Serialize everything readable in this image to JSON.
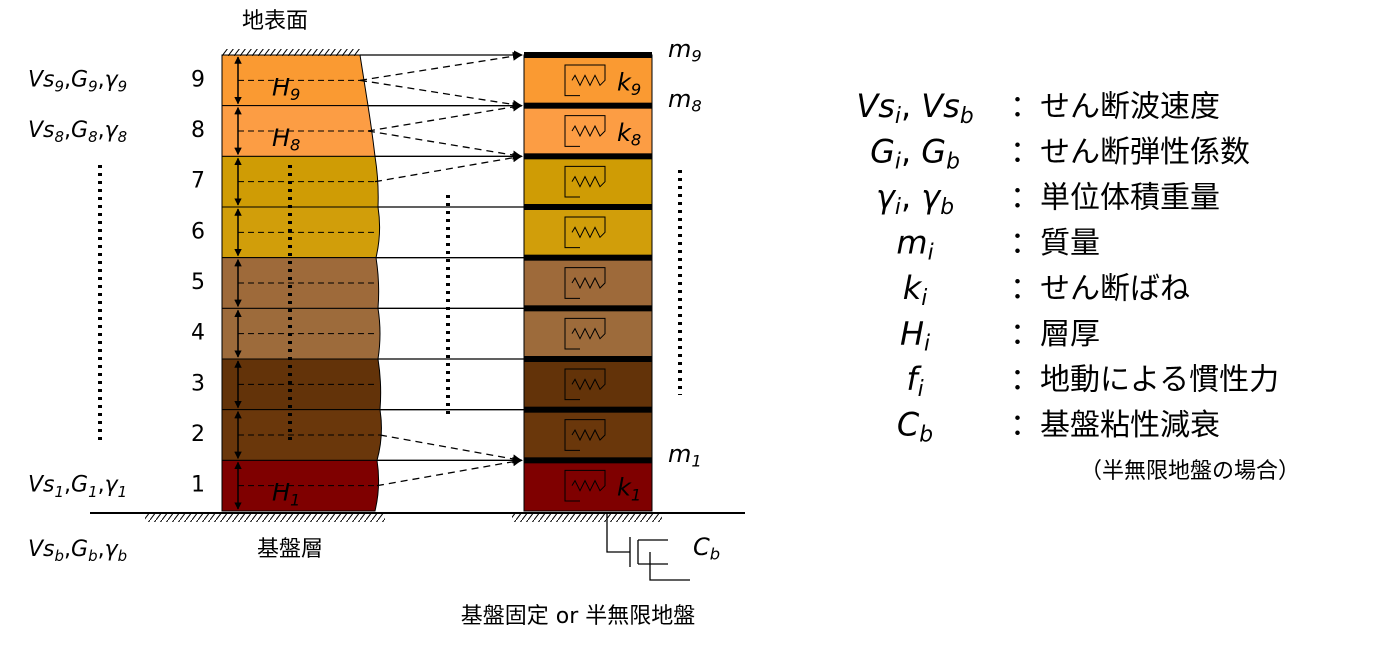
{
  "ground_surface_label": "地表面",
  "layers": [
    {
      "number": "9",
      "color": "#fa9a32"
    },
    {
      "number": "8",
      "color": "#fc9d44"
    },
    {
      "number": "7",
      "color": "#cf9c05"
    },
    {
      "number": "6",
      "color": "#d19e0a"
    },
    {
      "number": "5",
      "color": "#9e6a3a"
    },
    {
      "number": "4",
      "color": "#9d6b3b"
    },
    {
      "number": "3",
      "color": "#633309"
    },
    {
      "number": "2",
      "color": "#6a370b"
    },
    {
      "number": "1",
      "color": "#7f0000"
    }
  ],
  "separator": ",",
  "property_labels": [
    [
      {
        "base": "Vs",
        "sub": "9"
      },
      {
        "base": "G",
        "sub": "9"
      },
      {
        "base": "γ",
        "sub": "9"
      }
    ],
    [
      {
        "base": "Vs",
        "sub": "8"
      },
      {
        "base": "G",
        "sub": "8"
      },
      {
        "base": "γ",
        "sub": "8"
      }
    ],
    [
      {
        "base": "Vs",
        "sub": "1"
      },
      {
        "base": "G",
        "sub": "1"
      },
      {
        "base": "γ",
        "sub": "1"
      }
    ]
  ],
  "bedrock_properties": [
    {
      "base": "Vs",
      "sub": "b"
    },
    {
      "base": "G",
      "sub": "b"
    },
    {
      "base": "γ",
      "sub": "b"
    }
  ],
  "thickness_labels": [
    {
      "base": "H",
      "sub": "9"
    },
    {
      "base": "H",
      "sub": "8"
    },
    {
      "base": "H",
      "sub": "1"
    }
  ],
  "mass_labels": [
    {
      "base": "m",
      "sub": "9"
    },
    {
      "base": "m",
      "sub": "8"
    },
    {
      "base": "m",
      "sub": "1"
    }
  ],
  "spring_labels": [
    {
      "base": "k",
      "sub": "9"
    },
    {
      "base": "k",
      "sub": "8"
    },
    {
      "base": "k",
      "sub": "1"
    }
  ],
  "damper_label": {
    "base": "C",
    "sub": "b"
  },
  "base_layer_label": "基盤層",
  "caption": "基盤固定 or 半無限地盤",
  "legend_separator": ",",
  "legend": [
    {
      "symbol": [
        {
          "base": "Vs",
          "sub": "i"
        },
        {
          "base": "Vs",
          "sub": "b"
        }
      ],
      "description": "：せん断波速度"
    },
    {
      "symbol": [
        {
          "base": "G",
          "sub": "i"
        },
        {
          "base": "G",
          "sub": "b"
        }
      ],
      "description": "：せん断弾性係数"
    },
    {
      "symbol": [
        {
          "base": "γ",
          "sub": "i"
        },
        {
          "base": "γ",
          "sub": "b"
        }
      ],
      "description": "：単位体積重量"
    },
    {
      "symbol": [
        {
          "base": "m",
          "sub": "i"
        }
      ],
      "description": "：質量"
    },
    {
      "symbol": [
        {
          "base": "k",
          "sub": "i"
        }
      ],
      "description": "：せん断ばね"
    },
    {
      "symbol": [
        {
          "base": "H",
          "sub": "i"
        }
      ],
      "description": "：層厚"
    },
    {
      "symbol": [
        {
          "base": "f",
          "sub": "i"
        }
      ],
      "description": "：地動による慣性力"
    },
    {
      "symbol": [
        {
          "base": "C",
          "sub": "b"
        }
      ],
      "description": "：基盤粘性減衰"
    }
  ],
  "legend_note": "（半無限地盤の場合）"
}
